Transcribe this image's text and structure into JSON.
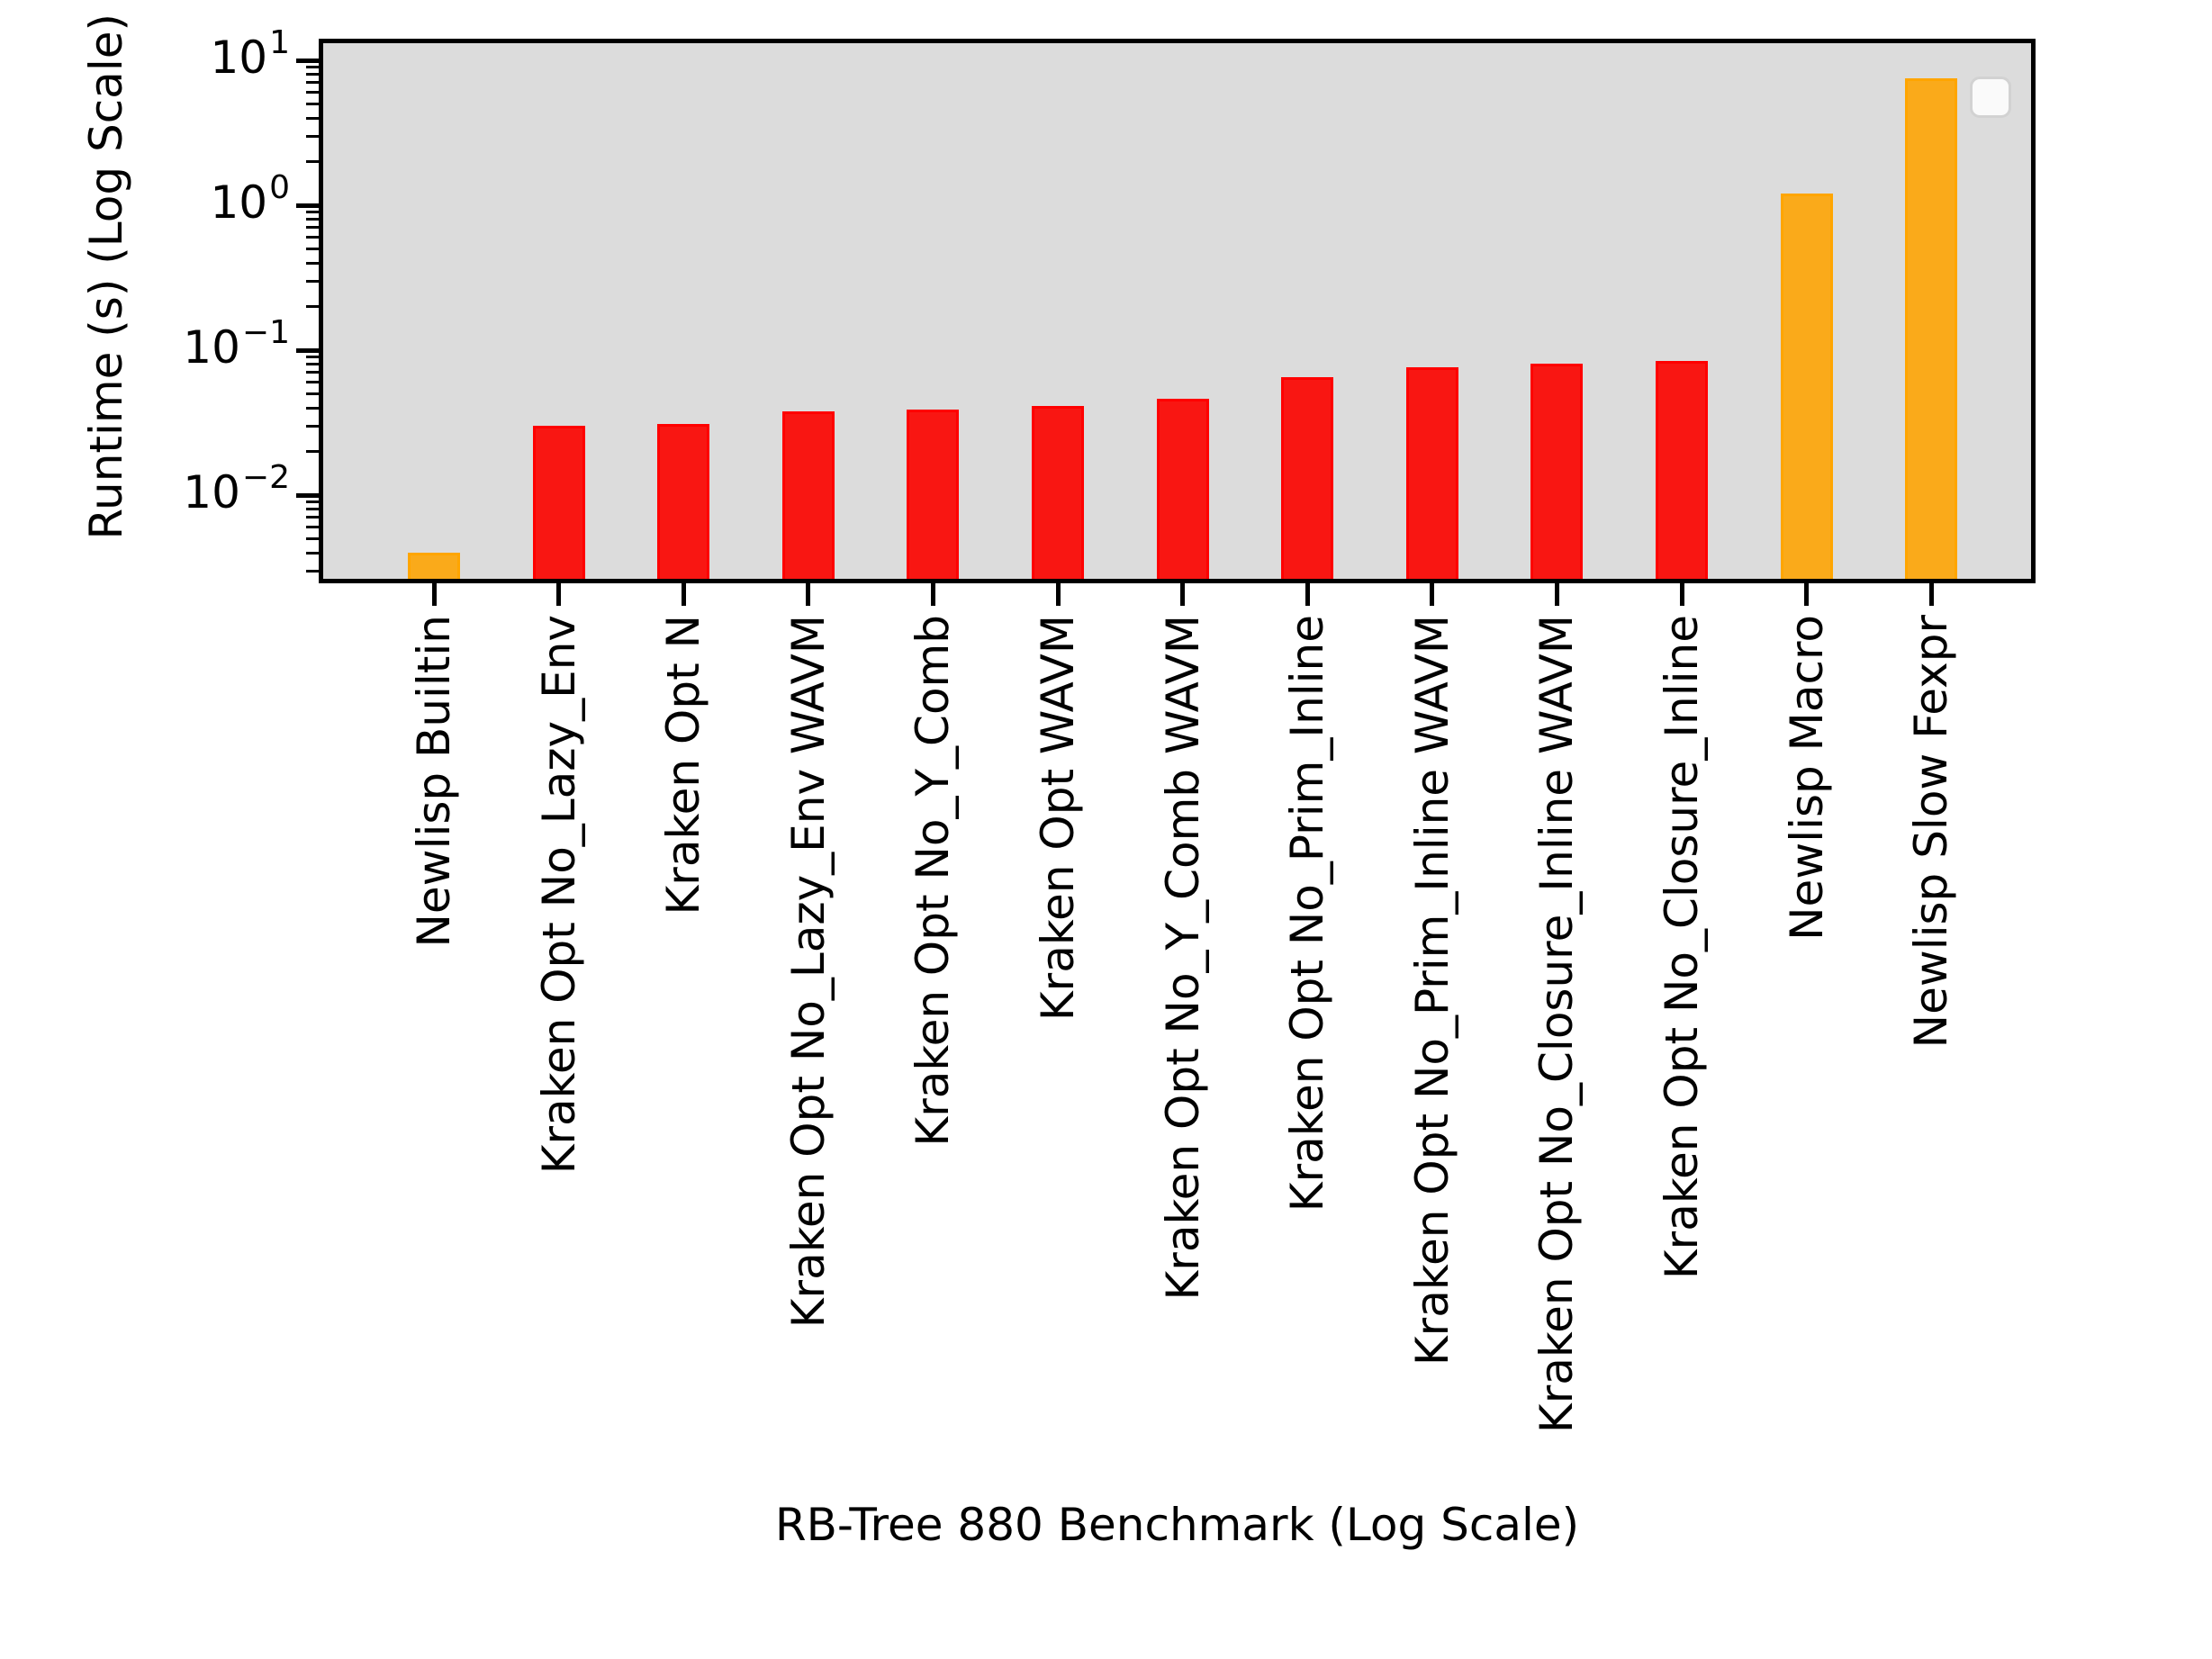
{
  "chart_data": {
    "type": "bar",
    "title": "",
    "xlabel": "RB-Tree 880 Benchmark (Log Scale)",
    "ylabel": "Runtime (s) (Log Scale)",
    "yscale": "log",
    "ylim": [
      0.0026,
      13.5
    ],
    "grid": false,
    "legend": {
      "visible": true,
      "position": "upper right",
      "entries": []
    },
    "plot_background": "#dcdcdc",
    "figure_background": "#ffffff",
    "axis_color": "#000000",
    "ytick_values": [
      10,
      1,
      0.1,
      0.01
    ],
    "ytick_labels": [
      {
        "base": "10",
        "exp": "1"
      },
      {
        "base": "10",
        "exp": "0"
      },
      {
        "base": "10",
        "exp": "−1"
      },
      {
        "base": "10",
        "exp": "−2"
      }
    ],
    "categories": [
      "Newlisp Builtin",
      "Kraken Opt No_Lazy_Env",
      "Kraken Opt N",
      "Kraken Opt No_Lazy_Env WAVM",
      "Kraken Opt No_Y_Comb",
      "Kraken Opt WAVM",
      "Kraken Opt No_Y_Comb WAVM",
      "Kraken Opt No_Prim_Inline",
      "Kraken Opt No_Prim_Inline WAVM",
      "Kraken Opt No_Closure_Inline WAVM",
      "Kraken Opt No_Closure_Inline",
      "Newlisp Macro",
      "Newlisp Slow Fexpr"
    ],
    "values": [
      0.004,
      0.03,
      0.031,
      0.038,
      0.039,
      0.041,
      0.046,
      0.065,
      0.076,
      0.081,
      0.084,
      1.2,
      7.5
    ],
    "bar_groups": [
      "orange",
      "red",
      "red",
      "red",
      "red",
      "red",
      "red",
      "red",
      "red",
      "red",
      "red",
      "orange",
      "orange"
    ],
    "palette": {
      "red_fill": "#f91612",
      "red_edge": "#ff0000",
      "orange_fill": "#faaa1a",
      "orange_edge": "#ffa500"
    }
  }
}
